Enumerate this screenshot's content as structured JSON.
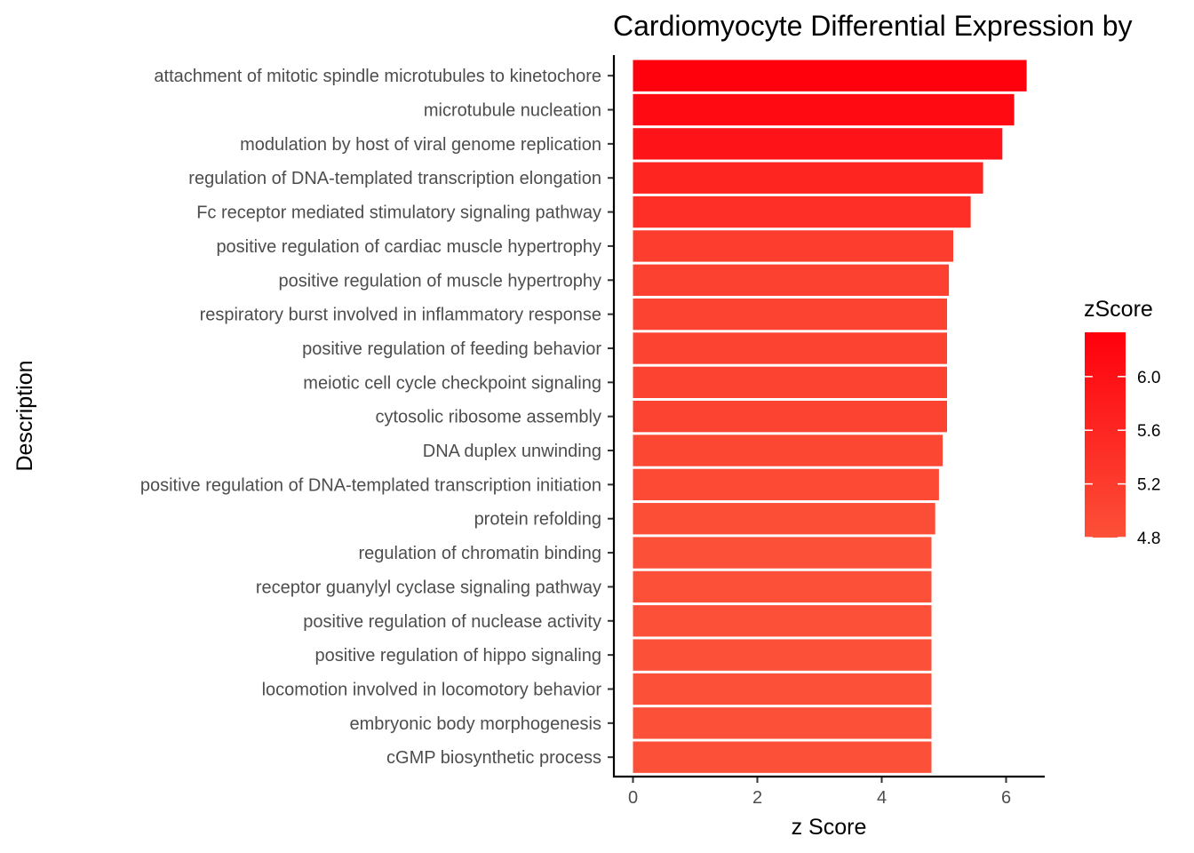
{
  "chart_data": {
    "type": "bar",
    "orientation": "horizontal",
    "title": "Cardiomyocyte Differential Expression by",
    "xlabel": "z Score",
    "ylabel": "Description",
    "xlim": [
      -0.3,
      6.8
    ],
    "xticks": [
      0,
      2,
      4,
      6
    ],
    "grid": false,
    "legend_position": "right",
    "categories": [
      "attachment of mitotic spindle microtubules to kinetochore",
      "microtubule nucleation",
      "modulation by host of viral genome replication",
      "regulation of DNA-templated transcription elongation",
      "Fc receptor mediated stimulatory signaling pathway",
      "positive regulation of cardiac muscle hypertrophy",
      "positive regulation of muscle hypertrophy",
      "respiratory burst involved in inflammatory response",
      "positive regulation of feeding behavior",
      "meiotic cell cycle checkpoint signaling",
      "cytosolic ribosome assembly",
      "DNA duplex unwinding",
      "positive regulation of DNA-templated transcription initiation",
      "protein refolding",
      "regulation of chromatin binding",
      "receptor guanylyl cyclase signaling pathway",
      "positive regulation of nuclease activity",
      "positive regulation of hippo signaling",
      "locomotion involved in locomotory behavior",
      "embryonic body morphogenesis",
      "cGMP biosynthetic process"
    ],
    "values": [
      6.33,
      6.13,
      5.94,
      5.63,
      5.43,
      5.15,
      5.08,
      5.05,
      5.05,
      5.05,
      5.05,
      4.98,
      4.92,
      4.86,
      4.8,
      4.8,
      4.8,
      4.8,
      4.8,
      4.8,
      4.8
    ],
    "color_legend": {
      "title": "zScore",
      "scale": "gradient",
      "range": [
        4.8,
        6.33
      ],
      "ticks": [
        "6.0",
        "5.6",
        "5.2",
        "4.8"
      ],
      "tick_values": [
        6.0,
        5.6,
        5.2,
        4.8
      ],
      "low_color": "#fc5038",
      "high_color": "#ff000d"
    }
  }
}
